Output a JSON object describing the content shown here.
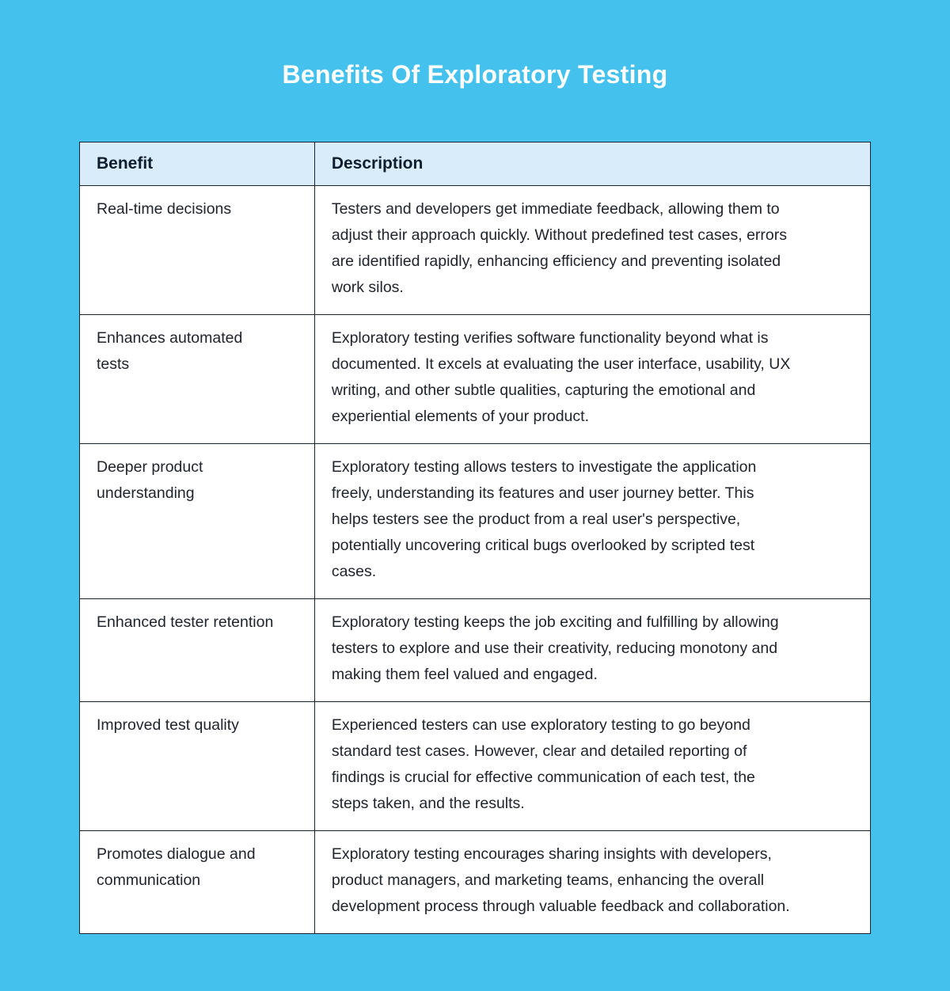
{
  "page": {
    "title": "Benefits Of Exploratory Testing"
  },
  "table": {
    "headers": [
      "Benefit",
      "Description"
    ],
    "rows": [
      {
        "benefit": "Real-time decisions",
        "description": "Testers and developers get immediate feedback, allowing them to\nadjust their approach quickly. Without predefined test cases, errors\nare identified rapidly, enhancing efficiency and preventing isolated\nwork silos."
      },
      {
        "benefit": "Enhances automated\ntests",
        "description": "Exploratory testing verifies software functionality beyond what is\ndocumented. It excels at evaluating the user interface, usability, UX\nwriting, and other subtle qualities, capturing the emotional and\nexperiential elements of your product."
      },
      {
        "benefit": "Deeper product\nunderstanding",
        "description": "Exploratory testing allows testers to investigate the application\nfreely, understanding its features and user journey better. This\nhelps testers see the product from a real user's perspective,\npotentially uncovering critical bugs overlooked by scripted test\ncases."
      },
      {
        "benefit": "Enhanced tester retention",
        "description": "Exploratory testing keeps the job exciting and fulfilling by allowing\ntesters to explore and use their creativity, reducing monotony and\nmaking them feel valued and engaged."
      },
      {
        "benefit": "Improved test quality",
        "description": "Experienced testers can use exploratory testing to go beyond\nstandard test cases. However, clear and detailed reporting of\nfindings is crucial for effective communication of each test, the\nsteps taken, and the results."
      },
      {
        "benefit": "Promotes dialogue and\ncommunication",
        "description": "Exploratory testing encourages sharing insights with developers,\nproduct managers, and marketing teams, enhancing the overall\ndevelopment process through valuable feedback and collaboration."
      }
    ]
  },
  "colors": {
    "background": "#45c1ee",
    "header_background": "#d8ecfa",
    "cell_background": "#ffffff",
    "border": "#1a242e",
    "title_text": "#ffffff",
    "header_text": "#101d2b",
    "body_text": "#20242c"
  }
}
